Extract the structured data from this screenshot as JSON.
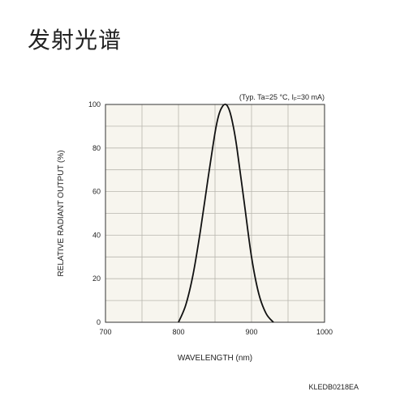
{
  "page": {
    "title": "发射光谱"
  },
  "chart_data": {
    "type": "line",
    "annotation": "(Typ. Ta=25 °C, I",
    "annotation_sub": "F",
    "annotation_tail": "=30 mA)",
    "xlabel": "WAVELENGTH (nm)",
    "ylabel": "RELATIVE RADIANT OUTPUT (%)",
    "xlim": [
      700,
      1000
    ],
    "ylim": [
      0,
      100
    ],
    "x_ticks": [
      "700",
      "800",
      "900",
      "1000"
    ],
    "y_ticks": [
      "0",
      "20",
      "40",
      "60",
      "80",
      "100"
    ],
    "grid": true,
    "colors": {
      "background": "#f7f5ee",
      "grid": "#b8b6ae",
      "line": "#111111"
    },
    "series": [
      {
        "x": [
          800,
          810,
          820,
          830,
          840,
          850,
          855,
          860,
          865,
          870,
          875,
          880,
          890,
          900,
          910,
          920,
          930
        ],
        "y": [
          0,
          8,
          22,
          42,
          65,
          87,
          95,
          99,
          100,
          97,
          90,
          80,
          55,
          30,
          13,
          4,
          0
        ]
      }
    ],
    "code": "KLEDB0218EA"
  }
}
